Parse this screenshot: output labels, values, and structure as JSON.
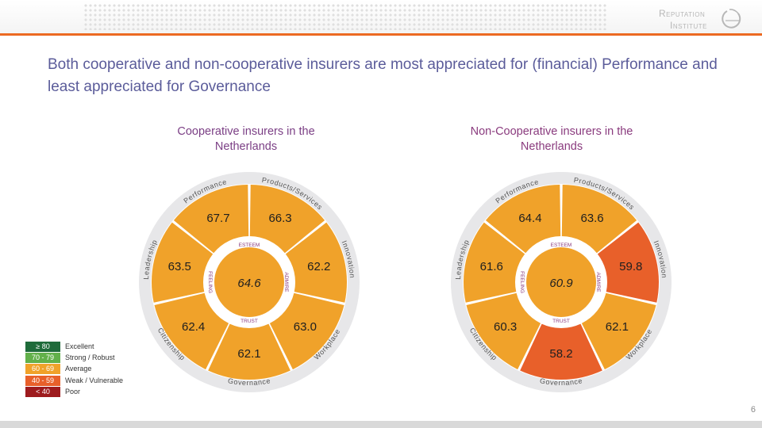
{
  "header": {
    "logo_line1": "Reputation",
    "logo_line2": "Institute",
    "accent_color": "#ec6a22"
  },
  "headline": "Both cooperative and non-cooperative insurers are most appreciated for (financial) Performance and least appreciated for Governance",
  "chart_data": [
    {
      "type": "radial-segmented",
      "title": "Cooperative insurers in the Netherlands",
      "center_value": "64.6",
      "dimensions": [
        {
          "name": "Products/Services",
          "value": 66.3,
          "label": "66.3",
          "color": "#f0a22a"
        },
        {
          "name": "Innovation",
          "value": 62.2,
          "label": "62.2",
          "color": "#f0a22a"
        },
        {
          "name": "Workplace",
          "value": 63.0,
          "label": "63.0",
          "color": "#f0a22a"
        },
        {
          "name": "Governance",
          "value": 62.1,
          "label": "62.1",
          "color": "#f0a22a"
        },
        {
          "name": "Citizenship",
          "value": 62.4,
          "label": "62.4",
          "color": "#f0a22a"
        },
        {
          "name": "Leadership",
          "value": 63.5,
          "label": "63.5",
          "color": "#f0a22a"
        },
        {
          "name": "Performance",
          "value": 67.7,
          "label": "67.7",
          "color": "#f0a22a"
        }
      ],
      "ring_labels": [
        "Performance",
        "Products/Services",
        "Innovation",
        "Workplace",
        "Governance",
        "Citizenship",
        "Leadership"
      ],
      "inner_labels": [
        "ESTEEM",
        "ADMIRE",
        "TRUST",
        "FEELING"
      ]
    },
    {
      "type": "radial-segmented",
      "title": "Non-Cooperative insurers in the Netherlands",
      "center_value": "60.9",
      "dimensions": [
        {
          "name": "Products/Services",
          "value": 63.6,
          "label": "63.6",
          "color": "#f0a22a"
        },
        {
          "name": "Innovation",
          "value": 59.8,
          "label": "59.8",
          "color": "#e8602a"
        },
        {
          "name": "Workplace",
          "value": 62.1,
          "label": "62.1",
          "color": "#f0a22a"
        },
        {
          "name": "Governance",
          "value": 58.2,
          "label": "58.2",
          "color": "#e8602a"
        },
        {
          "name": "Citizenship",
          "value": 60.3,
          "label": "60.3",
          "color": "#f0a22a"
        },
        {
          "name": "Leadership",
          "value": 61.6,
          "label": "61.6",
          "color": "#f0a22a"
        },
        {
          "name": "Performance",
          "value": 64.4,
          "label": "64.4",
          "color": "#f0a22a"
        }
      ],
      "ring_labels": [
        "Performance",
        "Products/Services",
        "Innovation",
        "Workplace",
        "Governance",
        "Citizenship",
        "Leadership"
      ],
      "inner_labels": [
        "ESTEEM",
        "ADMIRE",
        "TRUST",
        "FEELING"
      ]
    }
  ],
  "legend": [
    {
      "range": "≥ 80",
      "label": "Excellent",
      "color": "#1f6b3a"
    },
    {
      "range": "70 - 79",
      "label": "Strong / Robust",
      "color": "#62b04a"
    },
    {
      "range": "60 - 69",
      "label": "Average",
      "color": "#f0a22a"
    },
    {
      "range": "40 - 59",
      "label": "Weak / Vulnerable",
      "color": "#e8602a"
    },
    {
      "range": "< 40",
      "label": "Poor",
      "color": "#9e1b1e"
    }
  ],
  "page_number": "6"
}
